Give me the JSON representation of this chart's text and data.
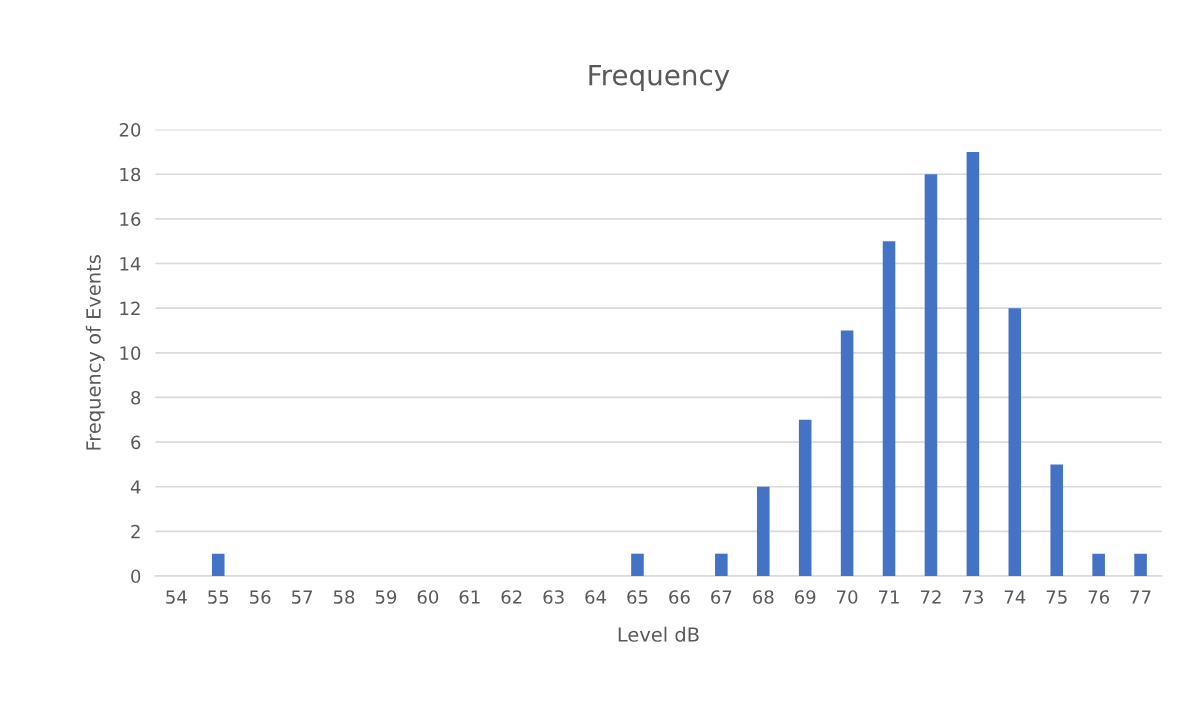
{
  "chart_data": {
    "type": "bar",
    "title": "Frequency",
    "xlabel": "Level dB",
    "ylabel": "Frequency of Events",
    "categories": [
      "54",
      "55",
      "56",
      "57",
      "58",
      "59",
      "60",
      "61",
      "62",
      "63",
      "64",
      "65",
      "66",
      "67",
      "68",
      "69",
      "70",
      "71",
      "72",
      "73",
      "74",
      "75",
      "76",
      "77"
    ],
    "values": [
      0,
      1,
      0,
      0,
      0,
      0,
      0,
      0,
      0,
      0,
      0,
      1,
      0,
      1,
      4,
      7,
      11,
      15,
      18,
      19,
      12,
      5,
      1,
      1
    ],
    "color": "#4472c4",
    "ylim": [
      0,
      20
    ],
    "yticks": [
      0,
      2,
      4,
      6,
      8,
      10,
      12,
      14,
      16,
      18,
      20
    ],
    "grid": "y",
    "legend": false
  }
}
